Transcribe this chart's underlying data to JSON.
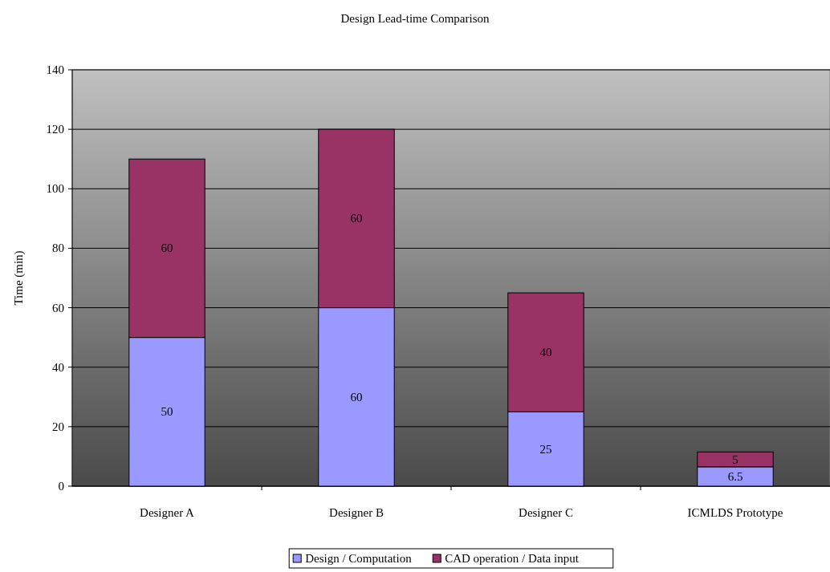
{
  "chart_data": {
    "type": "bar",
    "title": "Design Lead-time Comparison",
    "ylabel": "Time (min)",
    "categories": [
      "Designer A",
      "Designer B",
      "Designer C",
      "ICMLDS Prototype"
    ],
    "series": [
      {
        "name": "Design / Computation",
        "color": "#9999ff",
        "values": [
          50,
          60,
          25,
          6.5
        ]
      },
      {
        "name": "CAD operation / Data input",
        "color": "#993366",
        "values": [
          60,
          60,
          40,
          5
        ]
      }
    ],
    "stacked": true,
    "ylim": [
      0,
      140
    ],
    "yticks": [
      0,
      20,
      40,
      60,
      80,
      100,
      120,
      140
    ],
    "grid": "y",
    "legend": "bottom",
    "data_labels": true
  }
}
